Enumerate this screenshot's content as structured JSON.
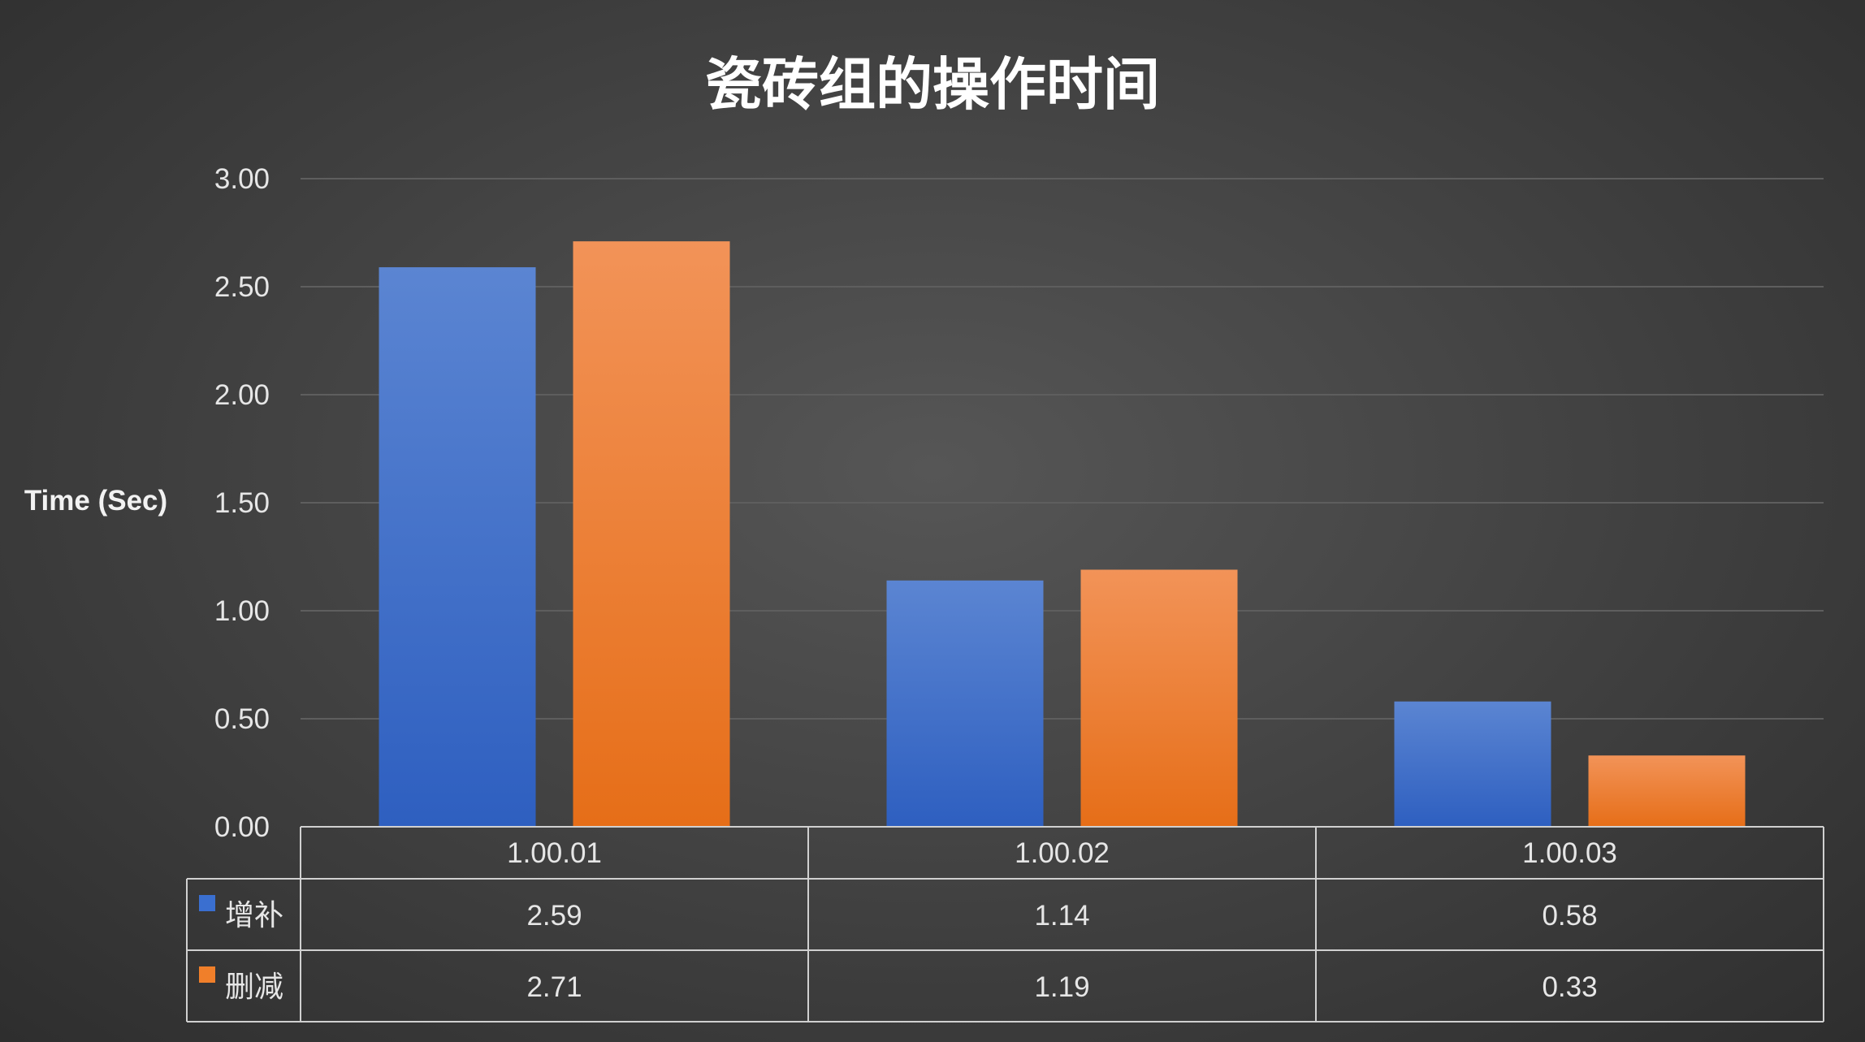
{
  "chart_data": {
    "type": "bar",
    "title": "瓷砖组的操作时间",
    "ylabel": "Time (Sec)",
    "xlabel": "",
    "ylim": [
      0,
      3
    ],
    "yticks": [
      "0.00",
      "0.50",
      "1.00",
      "1.50",
      "2.00",
      "2.50",
      "3.00"
    ],
    "grid": true,
    "legend": "data-table",
    "categories": [
      "1.00.01",
      "1.00.02",
      "1.00.03"
    ],
    "series": [
      {
        "name": "增补",
        "color": "#3a6fd0",
        "values": [
          2.59,
          1.14,
          0.58
        ],
        "labels": [
          "2.59",
          "1.14",
          "0.58"
        ]
      },
      {
        "name": "删减",
        "color": "#f07f2a",
        "values": [
          2.71,
          1.19,
          0.33
        ],
        "labels": [
          "2.71",
          "1.19",
          "0.33"
        ]
      }
    ]
  }
}
